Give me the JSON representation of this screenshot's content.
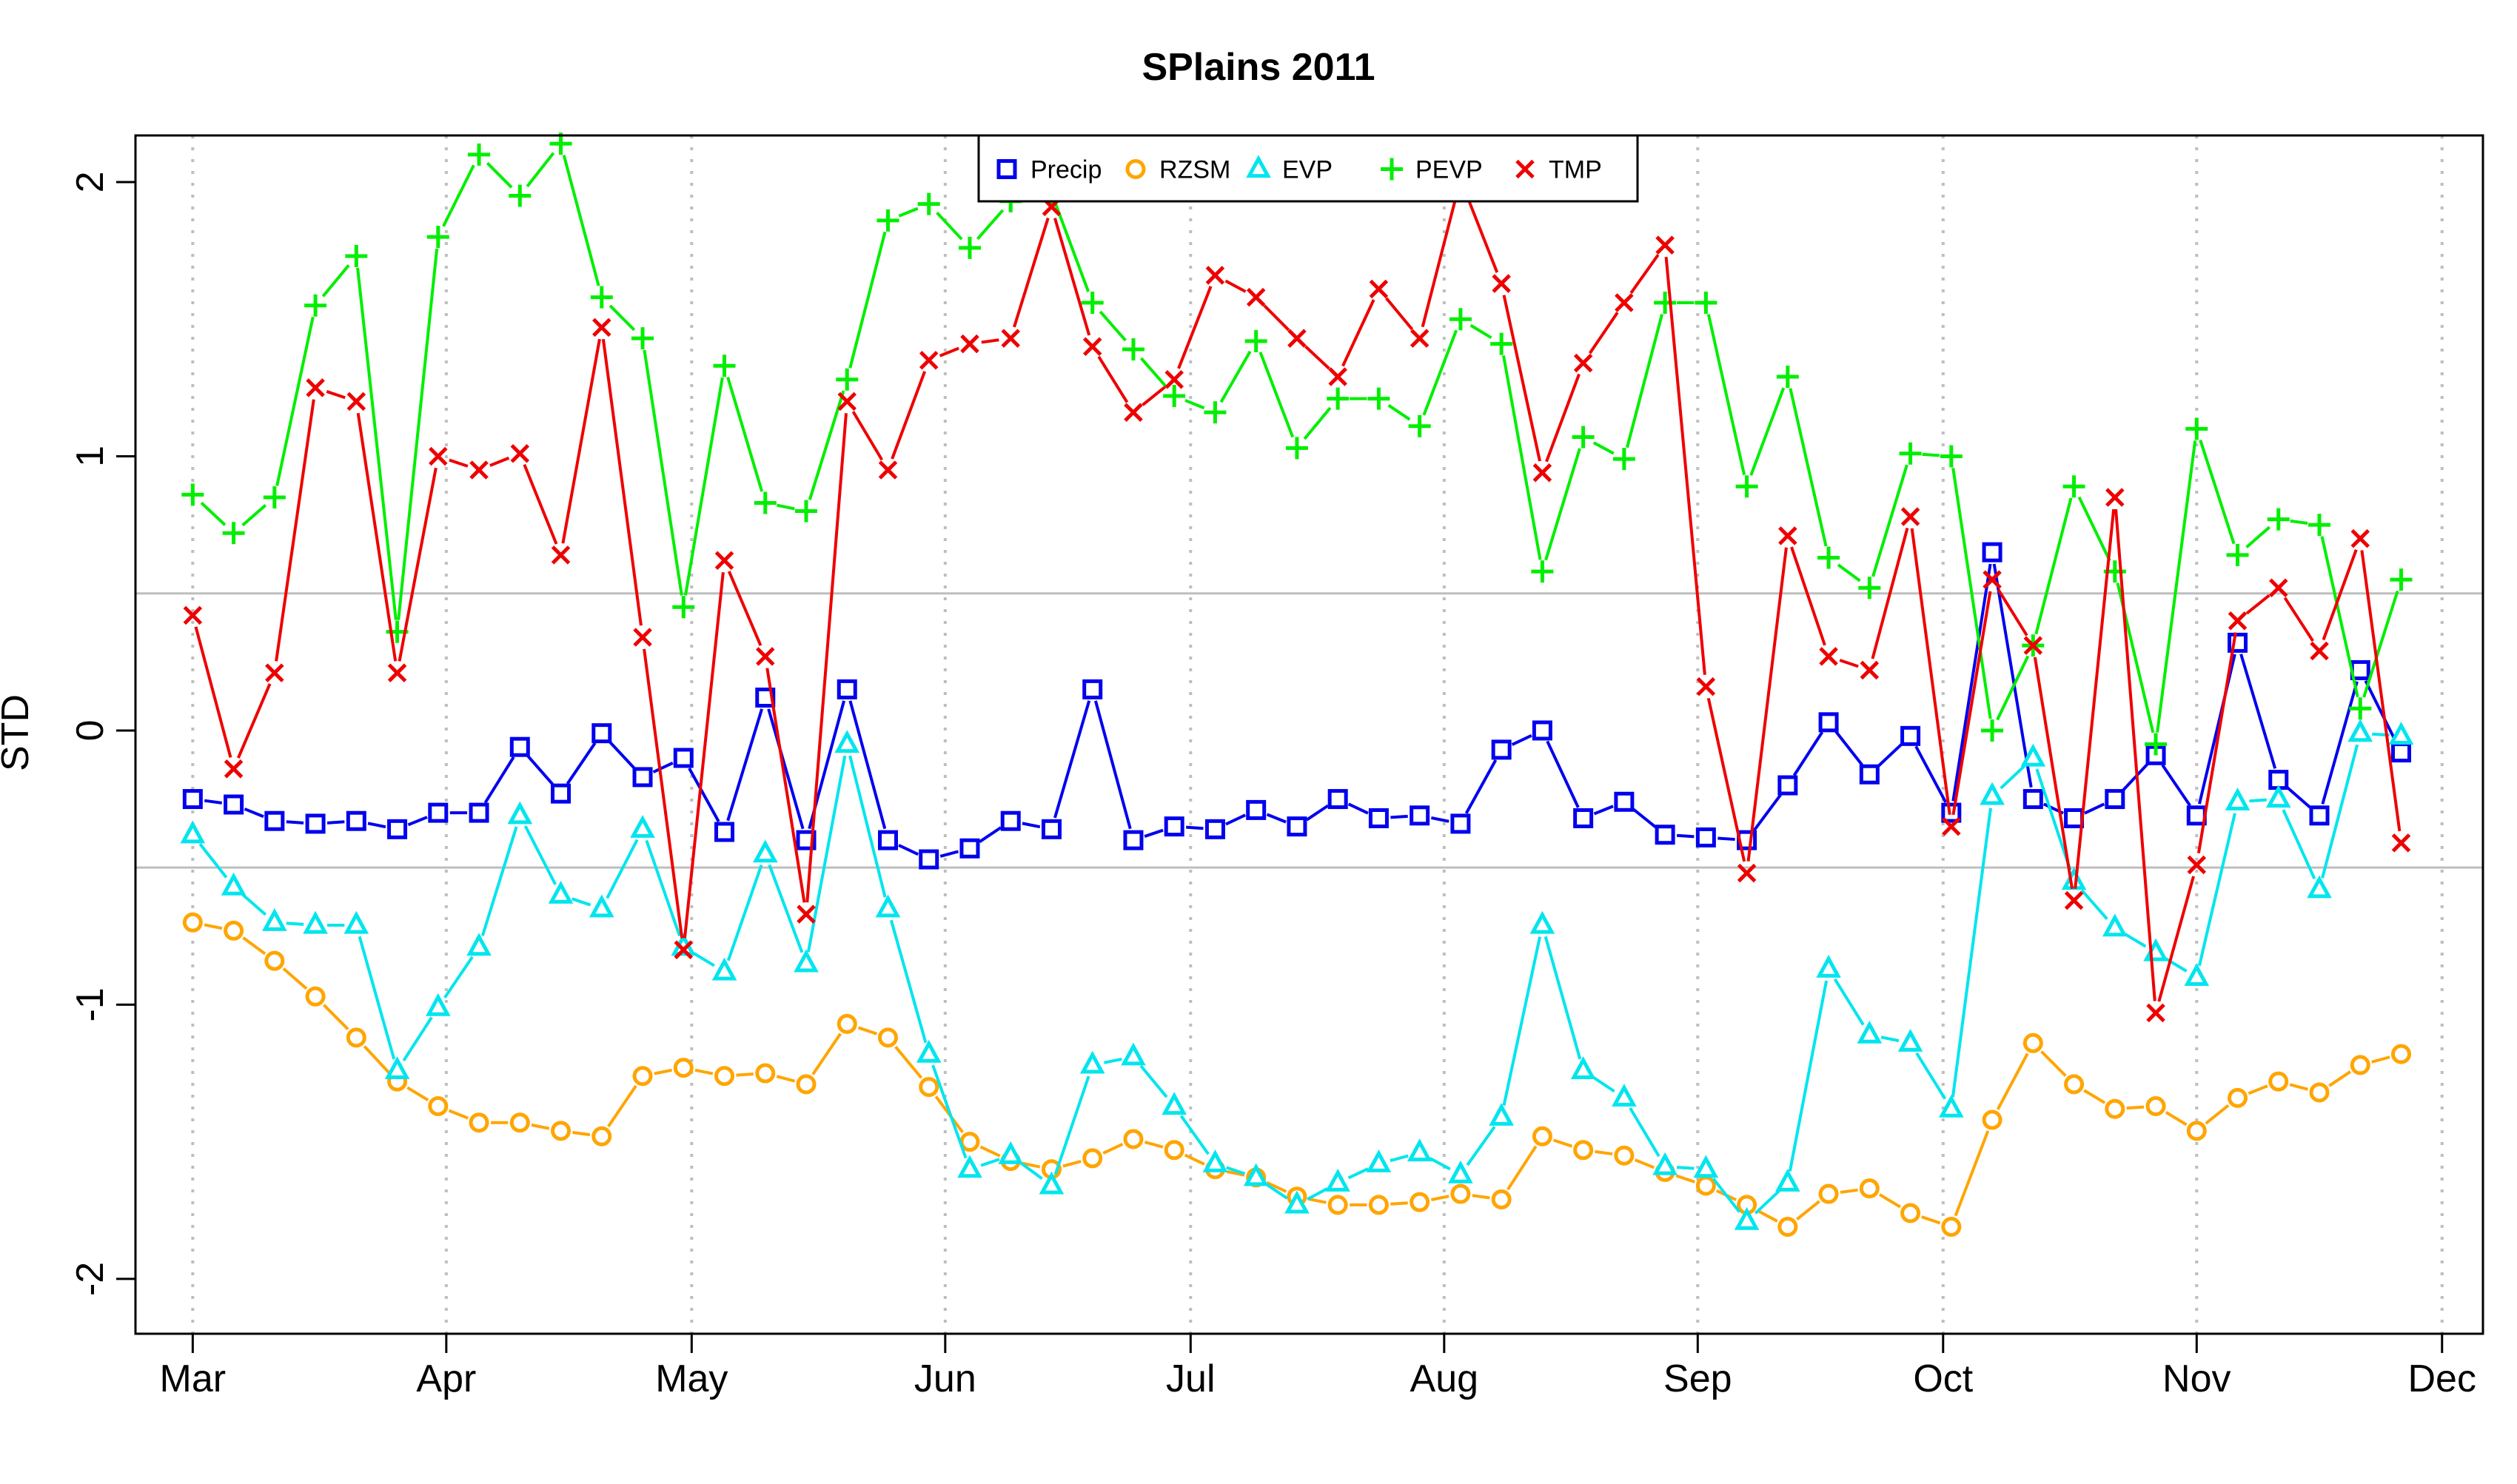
{
  "chart_data": {
    "type": "line",
    "title": "SPlains 2011",
    "xlabel": "",
    "ylabel": "STD",
    "ylim": [
      -2.2,
      2.17
    ],
    "yticks": [
      -2,
      -1,
      0,
      1,
      2
    ],
    "reference_lines": [
      -0.5,
      0.5
    ],
    "grid": "vertical dotted at month starts",
    "legend_position": "top-center",
    "x_axis": {
      "type": "date",
      "min": "2011-02-22",
      "max": "2011-12-06",
      "ticks": [
        {
          "date": "2011-03-01",
          "label": "Mar"
        },
        {
          "date": "2011-04-01",
          "label": "Apr"
        },
        {
          "date": "2011-05-01",
          "label": "May"
        },
        {
          "date": "2011-06-01",
          "label": "Jun"
        },
        {
          "date": "2011-07-01",
          "label": "Jul"
        },
        {
          "date": "2011-08-01",
          "label": "Aug"
        },
        {
          "date": "2011-09-01",
          "label": "Sep"
        },
        {
          "date": "2011-10-01",
          "label": "Oct"
        },
        {
          "date": "2011-11-01",
          "label": "Nov"
        },
        {
          "date": "2011-12-01",
          "label": "Dec"
        }
      ]
    },
    "x": [
      "2011-03-01",
      "2011-03-06",
      "2011-03-11",
      "2011-03-16",
      "2011-03-21",
      "2011-03-26",
      "2011-03-31",
      "2011-04-05",
      "2011-04-10",
      "2011-04-15",
      "2011-04-20",
      "2011-04-25",
      "2011-04-30",
      "2011-05-05",
      "2011-05-10",
      "2011-05-15",
      "2011-05-20",
      "2011-05-25",
      "2011-05-30",
      "2011-06-04",
      "2011-06-09",
      "2011-06-14",
      "2011-06-19",
      "2011-06-24",
      "2011-06-29",
      "2011-07-04",
      "2011-07-09",
      "2011-07-14",
      "2011-07-19",
      "2011-07-24",
      "2011-07-29",
      "2011-08-03",
      "2011-08-08",
      "2011-08-13",
      "2011-08-18",
      "2011-08-23",
      "2011-08-28",
      "2011-09-02",
      "2011-09-07",
      "2011-09-12",
      "2011-09-17",
      "2011-09-22",
      "2011-09-27",
      "2011-10-02",
      "2011-10-07",
      "2011-10-12",
      "2011-10-17",
      "2011-10-22",
      "2011-10-27",
      "2011-11-01",
      "2011-11-06",
      "2011-11-11",
      "2011-11-16",
      "2011-11-21",
      "2011-11-26"
    ],
    "series": [
      {
        "name": "Precip",
        "color": "#0000ee",
        "marker": "square",
        "values": [
          -0.25,
          -0.27,
          -0.33,
          -0.34,
          -0.33,
          -0.36,
          -0.3,
          -0.3,
          -0.06,
          -0.23,
          -0.01,
          -0.17,
          -0.1,
          -0.37,
          0.12,
          -0.4,
          0.15,
          -0.4,
          -0.47,
          -0.43,
          -0.33,
          -0.36,
          0.15,
          -0.4,
          -0.35,
          -0.36,
          -0.29,
          -0.35,
          -0.25,
          -0.32,
          -0.31,
          -0.34,
          -0.07,
          0.0,
          -0.32,
          -0.26,
          -0.38,
          -0.39,
          -0.4,
          -0.2,
          0.03,
          -0.16,
          -0.02,
          -0.3,
          0.65,
          -0.25,
          -0.32,
          -0.25,
          -0.09,
          -0.31,
          0.32,
          -0.18,
          -0.31,
          0.22,
          -0.08
        ]
      },
      {
        "name": "RZSM",
        "color": "#ffa500",
        "marker": "circle",
        "values": [
          -0.7,
          -0.73,
          -0.84,
          -0.97,
          -1.12,
          -1.28,
          -1.37,
          -1.43,
          -1.43,
          -1.46,
          -1.48,
          -1.26,
          -1.23,
          -1.26,
          -1.25,
          -1.29,
          -1.07,
          -1.12,
          -1.3,
          -1.5,
          -1.57,
          -1.6,
          -1.56,
          -1.49,
          -1.53,
          -1.6,
          -1.63,
          -1.7,
          -1.73,
          -1.73,
          -1.72,
          -1.69,
          -1.71,
          -1.48,
          -1.53,
          -1.55,
          -1.61,
          -1.66,
          -1.73,
          -1.81,
          -1.69,
          -1.67,
          -1.76,
          -1.81,
          -1.42,
          -1.14,
          -1.29,
          -1.38,
          -1.37,
          -1.46,
          -1.34,
          -1.28,
          -1.32,
          -1.22,
          -1.18
        ]
      },
      {
        "name": "EVP",
        "color": "#00e5ee",
        "marker": "triangle",
        "values": [
          -0.38,
          -0.57,
          -0.7,
          -0.71,
          -0.71,
          -1.24,
          -1.01,
          -0.79,
          -0.31,
          -0.6,
          -0.65,
          -0.36,
          -0.79,
          -0.88,
          -0.45,
          -0.85,
          -0.05,
          -0.65,
          -1.18,
          -1.6,
          -1.55,
          -1.66,
          -1.22,
          -1.19,
          -1.37,
          -1.58,
          -1.63,
          -1.73,
          -1.65,
          -1.58,
          -1.54,
          -1.62,
          -1.41,
          -0.71,
          -1.24,
          -1.34,
          -1.59,
          -1.6,
          -1.79,
          -1.65,
          -0.87,
          -1.11,
          -1.14,
          -1.38,
          -0.24,
          -0.1,
          -0.55,
          -0.72,
          -0.81,
          -0.9,
          -0.26,
          -0.25,
          -0.58,
          -0.01,
          -0.02
        ]
      },
      {
        "name": "PEVP",
        "color": "#00ee00",
        "marker": "plus",
        "values": [
          0.86,
          0.72,
          0.85,
          1.55,
          1.73,
          0.36,
          1.8,
          2.1,
          1.95,
          2.14,
          1.58,
          1.43,
          0.45,
          1.33,
          0.83,
          0.8,
          1.28,
          1.86,
          1.92,
          1.76,
          1.93,
          1.96,
          1.56,
          1.39,
          1.22,
          1.16,
          1.42,
          1.03,
          1.21,
          1.21,
          1.11,
          1.5,
          1.41,
          0.58,
          1.07,
          0.99,
          1.56,
          1.56,
          0.89,
          1.29,
          0.63,
          0.52,
          1.01,
          1.0,
          0.0,
          0.31,
          0.89,
          0.58,
          -0.05,
          1.1,
          0.64,
          0.77,
          0.75,
          0.08,
          0.55
        ]
      },
      {
        "name": "TMP",
        "color": "#ee0000",
        "marker": "cross",
        "values": [
          0.42,
          -0.14,
          0.21,
          1.25,
          1.2,
          0.21,
          1.0,
          0.95,
          1.01,
          0.64,
          1.47,
          0.34,
          -0.8,
          0.62,
          0.27,
          -0.67,
          1.2,
          0.95,
          1.35,
          1.41,
          1.43,
          1.91,
          1.4,
          1.16,
          1.28,
          1.66,
          1.58,
          1.43,
          1.29,
          1.61,
          1.43,
          2.01,
          1.63,
          0.94,
          1.34,
          1.56,
          1.77,
          0.16,
          -0.52,
          0.71,
          0.27,
          0.22,
          0.78,
          -0.35,
          0.55,
          0.31,
          -0.62,
          0.85,
          -1.03,
          -0.49,
          0.4,
          0.52,
          0.29,
          0.7,
          -0.41
        ]
      }
    ]
  }
}
